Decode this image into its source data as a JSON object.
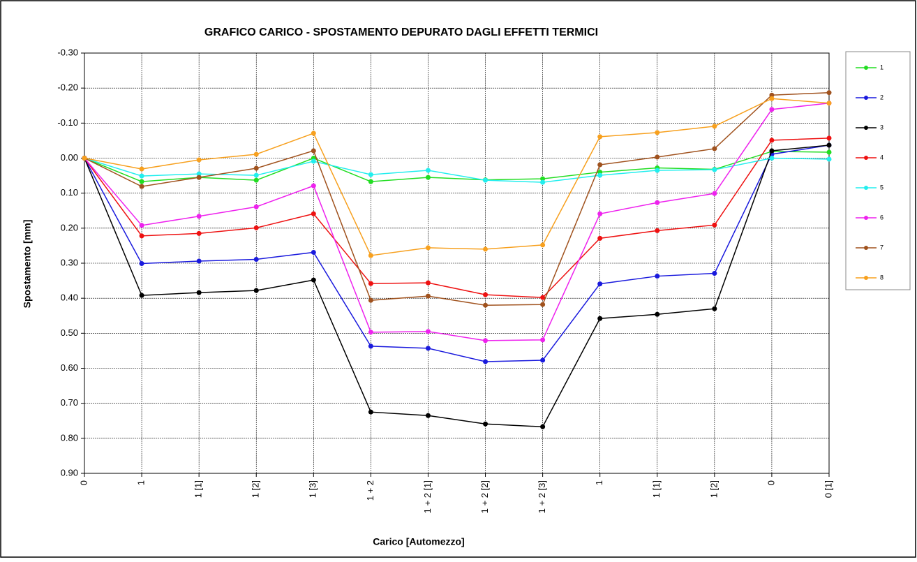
{
  "chart_data": {
    "type": "line",
    "title": "GRAFICO CARICO - SPOSTAMENTO DEPURATO DAGLI EFFETTI TERMICI",
    "x_label": "Carico [Automezzo]",
    "y_label": "Spostamento [mm]",
    "categories": [
      "0",
      "1",
      "1 [1]",
      "1 [2]",
      "1 [3]",
      "1 + 2",
      "1 + 2 [1]",
      "1 + 2 [2]",
      "1 + 2 [3]",
      "1",
      "1 [1]",
      "1 [2]",
      "0",
      "0 [1]"
    ],
    "ylim": [
      -0.3,
      0.9
    ],
    "y_inverted": true,
    "yticks": [
      {
        "value": -0.3,
        "label": "-0.30"
      },
      {
        "value": -0.2,
        "label": "-0.20"
      },
      {
        "value": -0.1,
        "label": "-0.10"
      },
      {
        "value": 0,
        "label": "0.00"
      },
      {
        "value": 0.1,
        "label": "0.10"
      },
      {
        "value": 0.2,
        "label": "0.20"
      },
      {
        "value": 0.3,
        "label": "0.30"
      },
      {
        "value": 0.4,
        "label": "0.40"
      },
      {
        "value": 0.5,
        "label": "0.50"
      },
      {
        "value": 0.6,
        "label": "0.60"
      },
      {
        "value": 0.7,
        "label": "0.70"
      },
      {
        "value": 0.8,
        "label": "0.80"
      },
      {
        "value": 0.9,
        "label": "0.90"
      }
    ],
    "grid": true,
    "legend": "right",
    "series": [
      {
        "name": "1",
        "color": "#22dd22",
        "values": [
          0,
          0.067,
          0.055,
          0.063,
          0.0,
          0.067,
          0.055,
          0.062,
          0.059,
          0.04,
          0.028,
          0.032,
          -0.019,
          -0.017
        ]
      },
      {
        "name": "2",
        "color": "#1a1add",
        "values": [
          0,
          0.301,
          0.294,
          0.289,
          0.269,
          0.537,
          0.543,
          0.581,
          0.577,
          0.359,
          0.337,
          0.329,
          -0.011,
          -0.037
        ]
      },
      {
        "name": "3",
        "color": "#000000",
        "values": [
          0,
          0.392,
          0.384,
          0.378,
          0.348,
          0.725,
          0.735,
          0.759,
          0.767,
          0.458,
          0.446,
          0.43,
          -0.021,
          -0.037
        ]
      },
      {
        "name": "4",
        "color": "#ee1111",
        "values": [
          0,
          0.222,
          0.215,
          0.199,
          0.159,
          0.358,
          0.356,
          0.39,
          0.398,
          0.229,
          0.207,
          0.191,
          -0.051,
          -0.057
        ]
      },
      {
        "name": "5",
        "color": "#22eeee",
        "values": [
          0,
          0.051,
          0.045,
          0.049,
          0.009,
          0.047,
          0.035,
          0.063,
          0.069,
          0.049,
          0.035,
          0.033,
          0.0,
          0.003
        ]
      },
      {
        "name": "6",
        "color": "#ee22ee",
        "values": [
          0,
          0.192,
          0.166,
          0.139,
          0.079,
          0.497,
          0.495,
          0.521,
          0.519,
          0.159,
          0.127,
          0.101,
          -0.139,
          -0.157
        ]
      },
      {
        "name": "7",
        "color": "#a0521e",
        "values": [
          0,
          0.081,
          0.055,
          0.029,
          -0.021,
          0.406,
          0.394,
          0.42,
          0.418,
          0.019,
          -0.003,
          -0.027,
          -0.18,
          -0.187
        ]
      },
      {
        "name": "8",
        "color": "#f7a01e",
        "values": [
          0,
          0.031,
          0.005,
          -0.011,
          -0.071,
          0.278,
          0.256,
          0.26,
          0.248,
          -0.061,
          -0.073,
          -0.091,
          -0.17,
          -0.157
        ]
      }
    ]
  }
}
